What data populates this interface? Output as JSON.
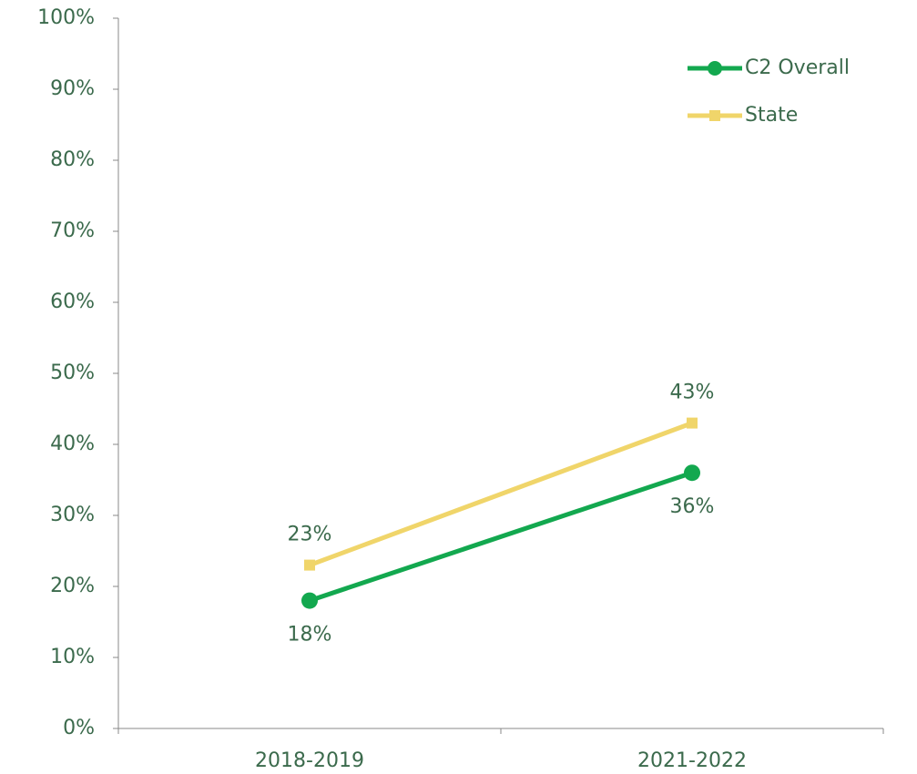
{
  "chart_data": {
    "type": "line",
    "categories": [
      "2018-2019",
      "2021-2022"
    ],
    "series": [
      {
        "name": "C2 Overall",
        "color": "#13a84f",
        "marker": "circle",
        "values": [
          18,
          36
        ],
        "value_labels": [
          "18%",
          "36%"
        ],
        "label_position": "below"
      },
      {
        "name": "State",
        "color": "#f0d56a",
        "marker": "square",
        "values": [
          23,
          43
        ],
        "value_labels": [
          "23%",
          "43%"
        ],
        "label_position": "above"
      }
    ],
    "ylim": [
      0,
      100
    ],
    "yticks": [
      {
        "value": 0,
        "label": "0%"
      },
      {
        "value": 10,
        "label": "10%"
      },
      {
        "value": 20,
        "label": "20%"
      },
      {
        "value": 30,
        "label": "30%"
      },
      {
        "value": 40,
        "label": "40%"
      },
      {
        "value": 50,
        "label": "50%"
      },
      {
        "value": 60,
        "label": "60%"
      },
      {
        "value": 70,
        "label": "70%"
      },
      {
        "value": 80,
        "label": "80%"
      },
      {
        "value": 90,
        "label": "90%"
      },
      {
        "value": 100,
        "label": "100%"
      }
    ],
    "legend": "top-right",
    "grid": false
  }
}
